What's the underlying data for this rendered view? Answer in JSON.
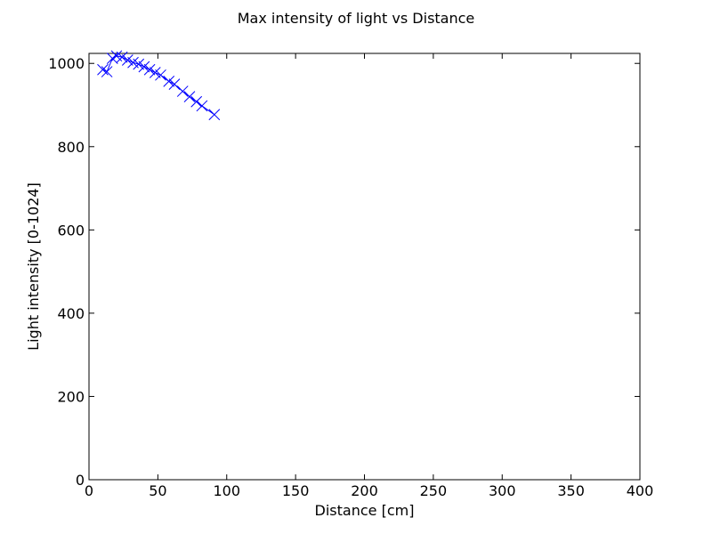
{
  "chart_data": {
    "type": "line",
    "title": "Max intensity of light vs Distance",
    "xlabel": "Distance [cm]",
    "ylabel": "Light intensity [0-1024]",
    "xlim": [
      0,
      400
    ],
    "ylim": [
      0,
      1024
    ],
    "xticks": [
      "0",
      "50",
      "100",
      "150",
      "200",
      "250",
      "300",
      "350",
      "400"
    ],
    "yticks": [
      "0",
      "200",
      "400",
      "600",
      "800",
      "1000"
    ],
    "grid": false,
    "marker": "x",
    "colors": {
      "series": "#0000ff",
      "axes": "#000000"
    },
    "series": [
      {
        "x": [
          10,
          13,
          17,
          20,
          24,
          28,
          32,
          36,
          40,
          44,
          48,
          52,
          58,
          62,
          68,
          73,
          78,
          82,
          91
        ],
        "y": [
          985,
          980,
          1012,
          1018,
          1015,
          1008,
          1002,
          998,
          992,
          985,
          978,
          972,
          957,
          950,
          933,
          920,
          908,
          898,
          877
        ]
      }
    ]
  }
}
